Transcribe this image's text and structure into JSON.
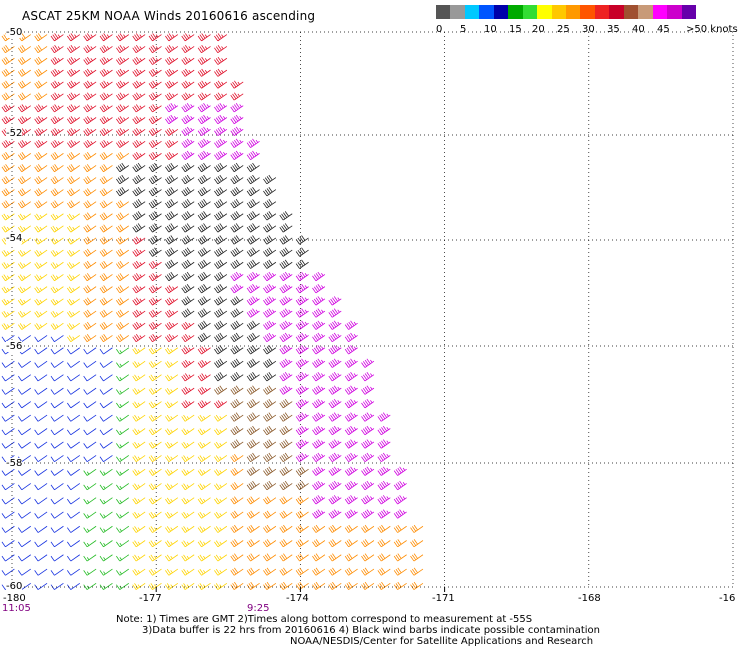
{
  "title": "ASCAT 25KM NOAA Winds 20160616 ascending",
  "legend": {
    "swatches": [
      {
        "color": "#555555"
      },
      {
        "color": "#999999"
      },
      {
        "color": "#00c8ff"
      },
      {
        "color": "#0055ff"
      },
      {
        "color": "#0000aa"
      },
      {
        "color": "#00aa00"
      },
      {
        "color": "#33dd33"
      },
      {
        "color": "#ffff00"
      },
      {
        "color": "#ffc800"
      },
      {
        "color": "#ff9900"
      },
      {
        "color": "#ff5500"
      },
      {
        "color": "#ee2222"
      },
      {
        "color": "#c80028"
      },
      {
        "color": "#a05030"
      },
      {
        "color": "#c89a78"
      },
      {
        "color": "#ff00ff"
      },
      {
        "color": "#cc00cc"
      },
      {
        "color": "#6600aa"
      }
    ],
    "labels": [
      "0",
      "5",
      "10",
      "15",
      "20",
      "25",
      "30",
      "35",
      "40",
      "45",
      ">50 knots"
    ]
  },
  "axes": {
    "lat_labels": [
      "-50",
      "-52",
      "-54",
      "-56",
      "-58",
      "-60"
    ],
    "lon_labels": [
      "-180",
      "-177",
      "-174",
      "-171",
      "-168",
      "-16"
    ],
    "time_labels": [
      "11:05",
      "9:25"
    ]
  },
  "notes": [
    "Note: 1) Times are GMT 2)Times along bottom correspond to measurement at -55S",
    "3)Data buffer is 22 hrs from 20160616 4) Black wind barbs indicate possible contamination",
    "NOAA/NESDIS/Center for Satellite Applications and Research"
  ],
  "chart_data": {
    "type": "wind barb map",
    "lat_range": [
      -60,
      -50
    ],
    "lon_range": [
      -180,
      -165
    ],
    "grid": true,
    "legend_placement": "top-right",
    "swath": {
      "description": "ASCAT swath west of a diagonal edge; stronger winds north/east, weaker blue/green winds southwest",
      "edge_points": [
        [
          -50,
          -175.4
        ],
        [
          -52,
          -174.9
        ],
        [
          -54,
          -173.8
        ],
        [
          -56,
          -172.5
        ],
        [
          -58,
          -171.8
        ],
        [
          -60,
          -171.1
        ]
      ],
      "regions": [
        {
          "name": "orange",
          "speed_knots": 33
        },
        {
          "name": "red",
          "speed_knots": 38
        },
        {
          "name": "yellow",
          "speed_knots": 25
        },
        {
          "name": "blue",
          "speed_knots": 13
        },
        {
          "name": "green",
          "speed_knots": 18
        },
        {
          "name": "magenta",
          "speed_knots": 45
        },
        {
          "name": "brown",
          "speed_knots": 42
        },
        {
          "name": "black",
          "speed_knots": 40
        }
      ]
    }
  }
}
